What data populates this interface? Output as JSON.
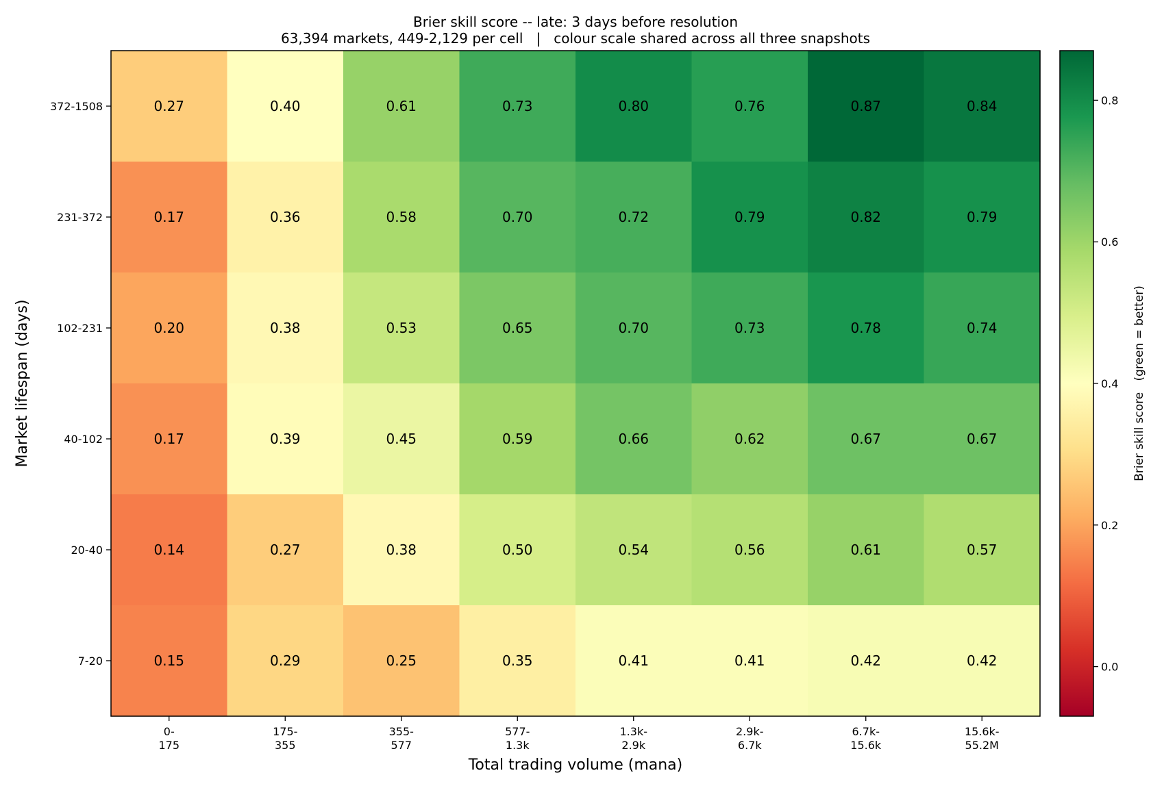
{
  "chart_data": {
    "type": "heatmap",
    "title": "Brier skill score -- late: 3 days before resolution",
    "subtitle": "63,394 markets, 449-2,129 per cell   |   colour scale shared across all three snapshots",
    "xlabel": "Total trading volume (mana)",
    "ylabel": "Market lifespan (days)",
    "x_categories": [
      [
        "0-",
        "175"
      ],
      [
        "175-",
        "355"
      ],
      [
        "355-",
        "577"
      ],
      [
        "577-",
        "1.3k"
      ],
      [
        "1.3k-",
        "2.9k"
      ],
      [
        "2.9k-",
        "6.7k"
      ],
      [
        "6.7k-",
        "15.6k"
      ],
      [
        "15.6k-",
        "55.2M"
      ]
    ],
    "y_categories": [
      "372-1508",
      "231-372",
      "102-231",
      "40-102",
      "20-40",
      "7-20"
    ],
    "values": [
      [
        0.27,
        0.4,
        0.61,
        0.73,
        0.8,
        0.76,
        0.87,
        0.84
      ],
      [
        0.17,
        0.36,
        0.58,
        0.7,
        0.72,
        0.79,
        0.82,
        0.79
      ],
      [
        0.2,
        0.38,
        0.53,
        0.65,
        0.7,
        0.73,
        0.78,
        0.74
      ],
      [
        0.17,
        0.39,
        0.45,
        0.59,
        0.66,
        0.62,
        0.67,
        0.67
      ],
      [
        0.14,
        0.27,
        0.38,
        0.5,
        0.54,
        0.56,
        0.61,
        0.57
      ],
      [
        0.15,
        0.29,
        0.25,
        0.35,
        0.41,
        0.41,
        0.42,
        0.42
      ]
    ],
    "value_labels": [
      [
        "0.27",
        "0.40",
        "0.61",
        "0.73",
        "0.80",
        "0.76",
        "0.87",
        "0.84"
      ],
      [
        "0.17",
        "0.36",
        "0.58",
        "0.70",
        "0.72",
        "0.79",
        "0.82",
        "0.79"
      ],
      [
        "0.20",
        "0.38",
        "0.53",
        "0.65",
        "0.70",
        "0.73",
        "0.78",
        "0.74"
      ],
      [
        "0.17",
        "0.39",
        "0.45",
        "0.59",
        "0.66",
        "0.62",
        "0.67",
        "0.67"
      ],
      [
        "0.14",
        "0.27",
        "0.38",
        "0.50",
        "0.54",
        "0.56",
        "0.61",
        "0.57"
      ],
      [
        "0.15",
        "0.29",
        "0.25",
        "0.35",
        "0.41",
        "0.41",
        "0.42",
        "0.42"
      ]
    ],
    "colormap": "RdYlGn",
    "color_range": [
      -0.07,
      0.87
    ],
    "colorbar": {
      "label": "Brier skill score   (green = better)",
      "ticks": [
        0.0,
        0.2,
        0.4,
        0.6,
        0.8
      ],
      "tick_labels": [
        "0.0",
        "0.2",
        "0.4",
        "0.6",
        "0.8"
      ]
    }
  }
}
